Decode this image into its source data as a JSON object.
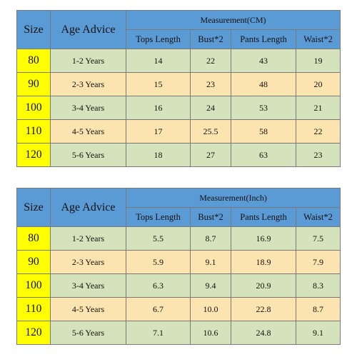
{
  "tables": [
    {
      "headers": {
        "size": "Size",
        "age": "Age Advice",
        "measurement": "Measurement(CM)",
        "columns": [
          "Tops Length",
          "Bust*2",
          "Pants Length",
          "Waist*2"
        ]
      },
      "rows": [
        {
          "size": "80",
          "age": "1-2 Years",
          "values": [
            "14",
            "22",
            "43",
            "19"
          ]
        },
        {
          "size": "90",
          "age": "2-3 Years",
          "values": [
            "15",
            "23",
            "48",
            "20"
          ]
        },
        {
          "size": "100",
          "age": "3-4 Years",
          "values": [
            "16",
            "24",
            "53",
            "21"
          ]
        },
        {
          "size": "110",
          "age": "4-5 Years",
          "values": [
            "17",
            "25.5",
            "58",
            "22"
          ]
        },
        {
          "size": "120",
          "age": "5-6 Years",
          "values": [
            "18",
            "27",
            "63",
            "23"
          ]
        }
      ]
    },
    {
      "headers": {
        "size": "Size",
        "age": "Age Advice",
        "measurement": "Measurement(Inch)",
        "columns": [
          "Tops Length",
          "Bust*2",
          "Pants Length",
          "Waist*2"
        ]
      },
      "rows": [
        {
          "size": "80",
          "age": "1-2 Years",
          "values": [
            "5.5",
            "8.7",
            "16.9",
            "7.5"
          ]
        },
        {
          "size": "90",
          "age": "2-3 Years",
          "values": [
            "5.9",
            "9.1",
            "18.9",
            "7.9"
          ]
        },
        {
          "size": "100",
          "age": "3-4 Years",
          "values": [
            "6.3",
            "9.4",
            "20.9",
            "8.3"
          ]
        },
        {
          "size": "110",
          "age": "4-5 Years",
          "values": [
            "6.7",
            "10.0",
            "22.8",
            "8.7"
          ]
        },
        {
          "size": "120",
          "age": "5-6 Years",
          "values": [
            "7.1",
            "10.6",
            "24.8",
            "9.1"
          ]
        }
      ]
    }
  ],
  "colors": {
    "header": "#5b9bd5",
    "size_cell": "#ffff00",
    "row_green": "#d5e3bc",
    "row_orange": "#fce4b0",
    "border": "#7a7a7a"
  }
}
